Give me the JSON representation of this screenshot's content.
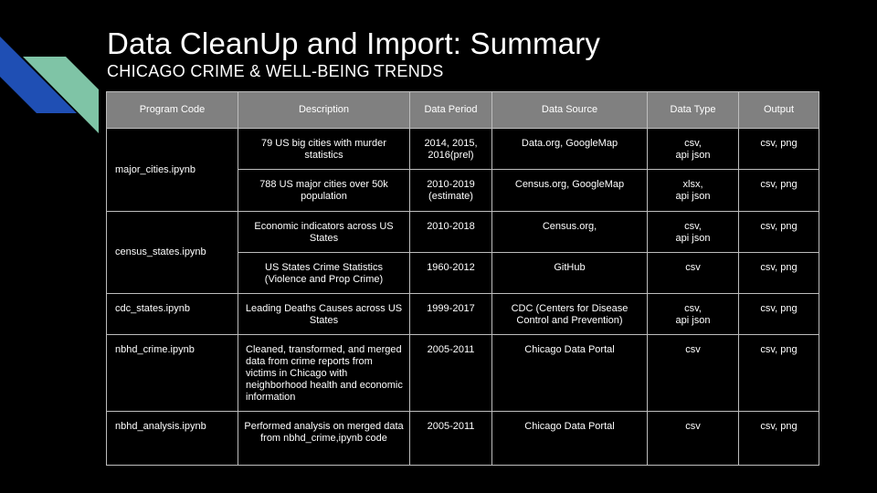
{
  "slide": {
    "title": "Data CleanUp and Import: Summary",
    "subtitle": "CHICAGO CRIME & WELL-BEING TRENDS",
    "colors": {
      "accent_blue": "#1f4fb4",
      "accent_green": "#7fc4a6",
      "header_gray": "#808080"
    }
  },
  "table": {
    "headers": [
      "Program Code",
      "Description",
      "Data Period",
      "Data Source",
      "Data Type",
      "Output"
    ],
    "groups": [
      {
        "code": "major_cities.ipynb",
        "rows": [
          {
            "description": "79 US big cities with murder statistics",
            "period": "2014, 2015, 2016(prel)",
            "source": "Data.org, GoogleMap",
            "type": "csv,\napi json",
            "output": "csv, png"
          },
          {
            "description": "788 US major cities over 50k population",
            "period": "2010-2019 (estimate)",
            "source": "Census.org, GoogleMap",
            "type": "xlsx,\napi json",
            "output": "csv, png"
          }
        ]
      },
      {
        "code": "census_states.ipynb",
        "rows": [
          {
            "description": "Economic indicators across US States",
            "period": "2010-2018",
            "source": "Census.org,",
            "type": "csv,\napi json",
            "output": "csv, png"
          },
          {
            "description": "US States Crime Statistics (Violence and Prop Crime)",
            "period": "1960-2012",
            "source": "GitHub",
            "type": "csv",
            "output": "csv, png"
          }
        ]
      },
      {
        "code": "cdc_states.ipynb",
        "rows": [
          {
            "description": "Leading Deaths Causes across US States",
            "period": "1999-2017",
            "source": "CDC (Centers for Disease Control and Prevention)",
            "type": "csv,\napi json",
            "output": "csv, png"
          }
        ]
      },
      {
        "code": "nbhd_crime.ipynb",
        "rows": [
          {
            "description": "Cleaned, transformed, and merged data from crime reports from victims in Chicago with neighborhood health and economic information",
            "period": "2005-2011",
            "source": "Chicago Data Portal",
            "type": "csv",
            "output": "csv, png"
          }
        ]
      },
      {
        "code": "nbhd_analysis.ipynb",
        "rows": [
          {
            "description": "Performed analysis on merged data from nbhd_crime,ipynb code",
            "period": "2005-2011",
            "source": "Chicago Data Portal",
            "type": "csv",
            "output": "csv, png"
          }
        ]
      }
    ]
  }
}
